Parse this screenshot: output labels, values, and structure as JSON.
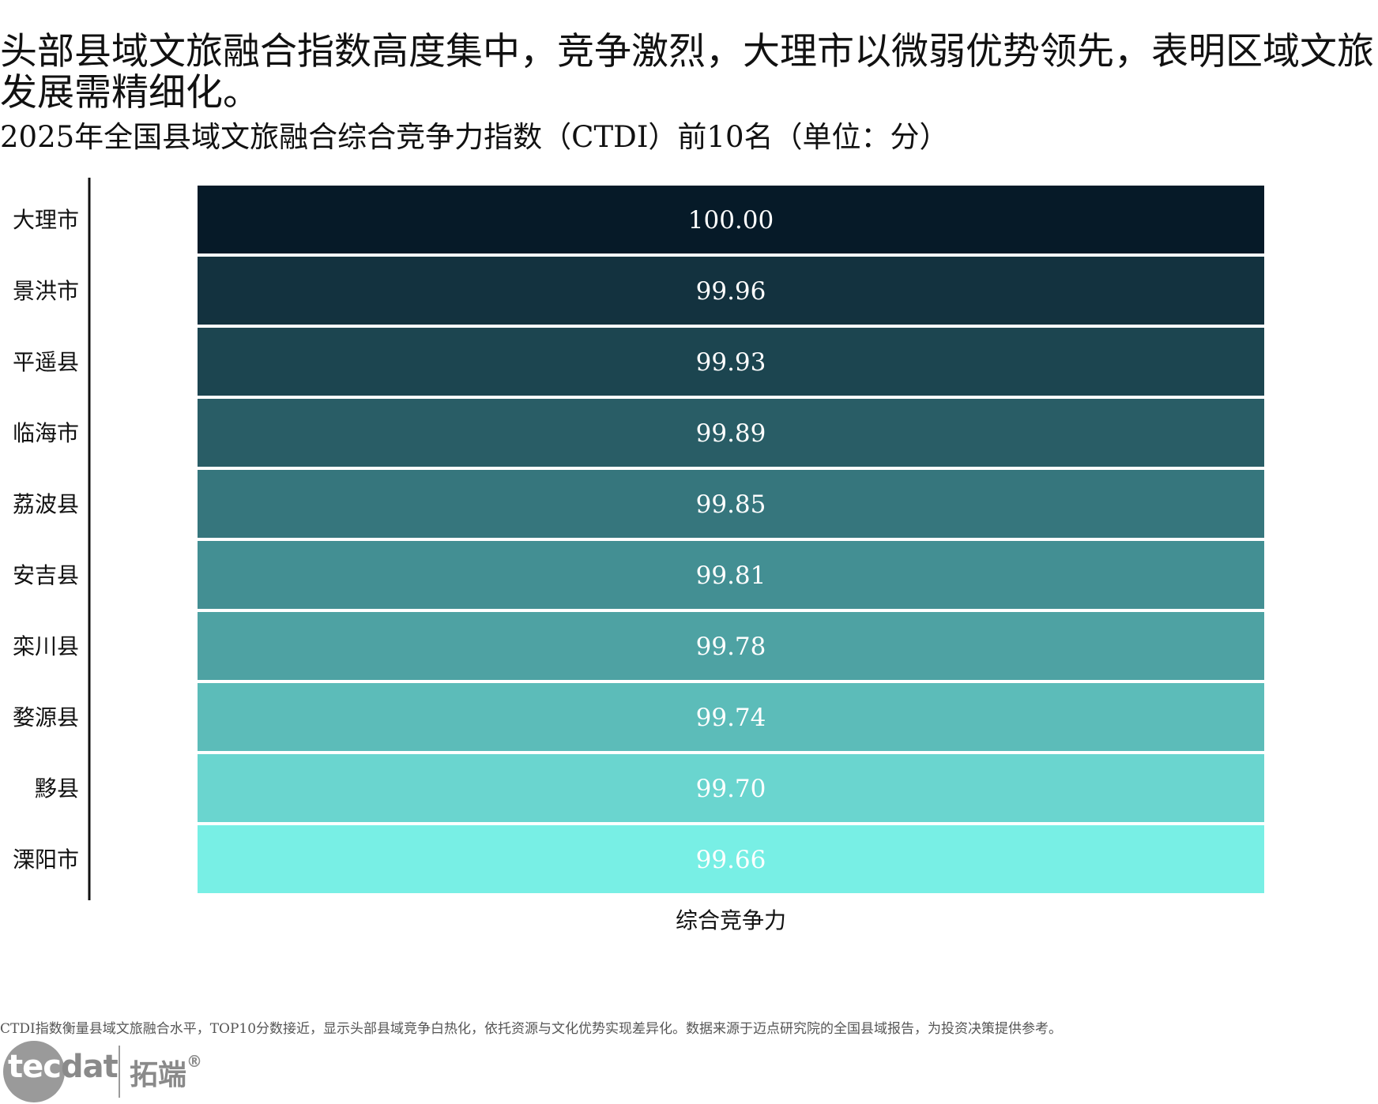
{
  "headline": "头部县域文旅融合指数高度集中，竞争激烈，大理市以微弱优势领先，表明区域文旅发展需精细化。",
  "subtitle": "2025年全国县域文旅融合综合竞争力指数（CTDI）前10名（单位：分）",
  "chart_data": {
    "type": "heatmap",
    "title": "2025年全国县域文旅融合综合竞争力指数（CTDI）前10名（单位：分）",
    "xlabel": "综合竞争力",
    "ylabel": "",
    "categories": [
      "大理市",
      "景洪市",
      "平遥县",
      "临海市",
      "荔波县",
      "安吉县",
      "栾川县",
      "婺源县",
      "黟县",
      "溧阳市"
    ],
    "columns": [
      "综合竞争力"
    ],
    "values": [
      100.0,
      99.96,
      99.93,
      99.89,
      99.85,
      99.81,
      99.78,
      99.74,
      99.7,
      99.66
    ],
    "value_labels": [
      "100.00",
      "99.96",
      "99.93",
      "99.89",
      "99.85",
      "99.81",
      "99.78",
      "99.74",
      "99.70",
      "99.66"
    ],
    "color_scale": {
      "min_value": 99.66,
      "max_value": 100.0,
      "min_color": "#78efe5",
      "max_color": "#061a28"
    },
    "label_color": "#ffffff"
  },
  "footnote": "CTDI指数衡量县域文旅融合水平，TOP10分数接近，显示头部县域竞争白热化，依托资源与文化优势实现差异化。数据来源于迈点研究院的全国县域报告，为投资决策提供参考。",
  "logo": {
    "text_white": "tec",
    "text_grey": "dat",
    "cn": "拓端",
    "reg": "®"
  }
}
